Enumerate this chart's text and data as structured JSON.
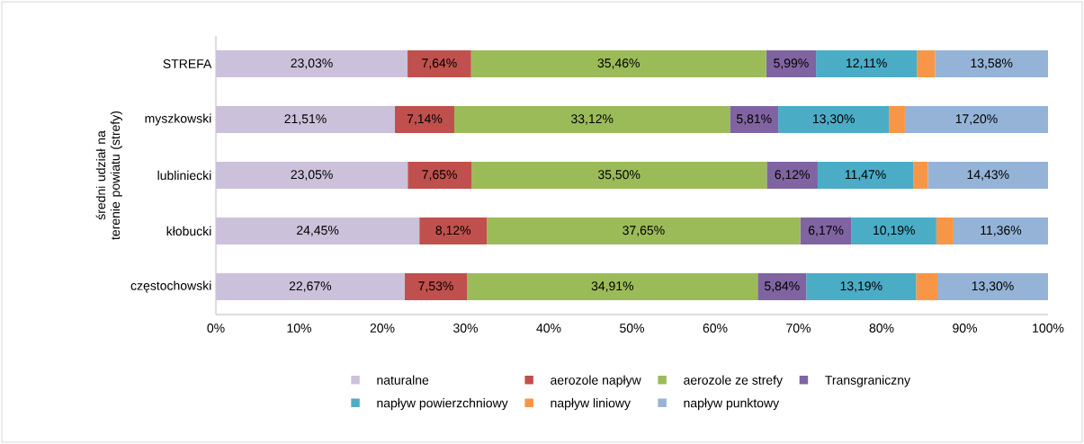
{
  "chart_data": {
    "type": "bar",
    "orientation": "horizontal",
    "stacked": true,
    "ylabel": "średni udział na terenie powiatu (strefy)",
    "categories": [
      "STREFA",
      "myszkowski",
      "lubliniecki",
      "kłobucki",
      "częstochowski"
    ],
    "series": [
      {
        "name": "naturalne",
        "color": "#ccc1da",
        "values": [
          23.03,
          21.51,
          23.05,
          24.45,
          22.67
        ],
        "value_labels": [
          "23,03%",
          "21,51%",
          "23,05%",
          "24,45%",
          "22,67%"
        ]
      },
      {
        "name": "aerozole napływ",
        "color": "#c0504d",
        "values": [
          7.64,
          7.14,
          7.65,
          8.12,
          7.53
        ],
        "value_labels": [
          "7,64%",
          "7,14%",
          "7,65%",
          "8,12%",
          "7,53%"
        ]
      },
      {
        "name": "aerozole ze strefy",
        "color": "#9bbb59",
        "values": [
          35.46,
          33.12,
          35.5,
          37.65,
          34.91
        ],
        "value_labels": [
          "35,46%",
          "33,12%",
          "35,50%",
          "37,65%",
          "34,91%"
        ]
      },
      {
        "name": "Transgraniczny",
        "color": "#8064a2",
        "values": [
          5.99,
          5.81,
          6.12,
          6.17,
          5.84
        ],
        "value_labels": [
          "5,99%",
          "5,81%",
          "6,12%",
          "6,17%",
          "5,84%"
        ]
      },
      {
        "name": "napływ powierzchniowy",
        "color": "#4bacc6",
        "values": [
          12.11,
          13.3,
          11.47,
          10.19,
          13.19
        ],
        "value_labels": [
          "12,11%",
          "13,30%",
          "11,47%",
          "10,19%",
          "13,19%"
        ]
      },
      {
        "name": "napływ liniowy",
        "color": "#f79646",
        "values": [
          2.19,
          1.92,
          1.78,
          2.06,
          2.56
        ]
      },
      {
        "name": "napływ punktowy",
        "color": "#95b3d7",
        "values": [
          13.58,
          17.2,
          14.43,
          11.36,
          13.3
        ],
        "value_labels": [
          "13,58%",
          "17,20%",
          "14,43%",
          "11,36%",
          "13,30%"
        ]
      }
    ],
    "xlim": [
      0,
      100
    ],
    "xticks": [
      {
        "value": 0,
        "label": "0%"
      },
      {
        "value": 10,
        "label": "10%"
      },
      {
        "value": 20,
        "label": "20%"
      },
      {
        "value": 30,
        "label": "30%"
      },
      {
        "value": 40,
        "label": "40%"
      },
      {
        "value": 50,
        "label": "50%"
      },
      {
        "value": 60,
        "label": "60%"
      },
      {
        "value": 70,
        "label": "70%"
      },
      {
        "value": 80,
        "label": "80%"
      },
      {
        "value": 90,
        "label": "90%"
      },
      {
        "value": 100,
        "label": "100%"
      }
    ],
    "grid": false,
    "legend": "bottom"
  }
}
